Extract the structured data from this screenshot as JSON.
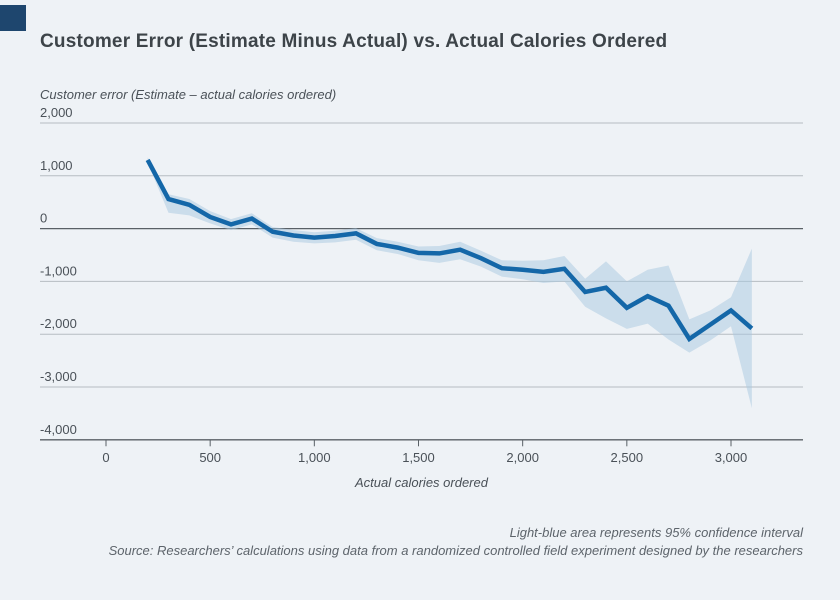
{
  "page": {
    "background": "#eef2f6",
    "accent_square_color": "#1e466e"
  },
  "title": "Customer Error (Estimate Minus Actual) vs. Actual Calories Ordered",
  "footer": {
    "note1": "Light-blue area represents 95% confidence interval",
    "note2": "Source: Researchers’ calculations using data from a randomized controlled field experiment designed by the researchers"
  },
  "chart_data": {
    "type": "line",
    "title": "Customer Error (Estimate Minus Actual) vs. Actual Calories Ordered",
    "ylabel": "Customer error (Estimate – actual calories ordered)",
    "xlabel": "Actual calories ordered",
    "x": [
      200,
      300,
      400,
      500,
      600,
      700,
      800,
      900,
      1000,
      1100,
      1200,
      1300,
      1400,
      1500,
      1600,
      1700,
      1800,
      1900,
      2000,
      2100,
      2200,
      2300,
      2400,
      2500,
      2600,
      2700,
      2800,
      2900,
      3000,
      3100
    ],
    "series": [
      {
        "name": "Customer error (estimate minus actual)",
        "values": [
          1300,
          560,
          450,
          220,
          80,
          190,
          -60,
          -130,
          -170,
          -140,
          -90,
          -290,
          -360,
          -460,
          -470,
          -400,
          -560,
          -750,
          -780,
          -820,
          -760,
          -1200,
          -1120,
          -1500,
          -1280,
          -1460,
          -2090,
          -1820,
          -1550,
          -1890
        ]
      },
      {
        "name": "95% CI upper bound",
        "values": [
          1350,
          650,
          560,
          330,
          180,
          290,
          30,
          -30,
          -70,
          -40,
          10,
          -180,
          -250,
          -340,
          -330,
          -250,
          -420,
          -600,
          -610,
          -600,
          -520,
          -950,
          -620,
          -1000,
          -780,
          -700,
          -1720,
          -1550,
          -1300,
          -380
        ]
      },
      {
        "name": "95% CI lower bound",
        "values": [
          1250,
          300,
          250,
          100,
          -30,
          80,
          -170,
          -250,
          -280,
          -260,
          -210,
          -410,
          -480,
          -600,
          -650,
          -580,
          -720,
          -910,
          -960,
          -1030,
          -1000,
          -1480,
          -1700,
          -1900,
          -1800,
          -2100,
          -2350,
          -2120,
          -1850,
          -3400
        ]
      }
    ],
    "y_ticks": [
      2000,
      1000,
      0,
      -1000,
      -2000,
      -3000,
      -4000
    ],
    "y_tick_labels": [
      "2,000",
      "1,000",
      "0",
      "-1,000",
      "-2,000",
      "-3,000",
      "-4,000"
    ],
    "x_ticks": [
      0,
      500,
      1000,
      1500,
      2000,
      2500,
      3000
    ],
    "x_tick_labels": [
      "0",
      "500",
      "1,000",
      "1,500",
      "2,000",
      "2,500",
      "3,000"
    ],
    "ylim": [
      -4000,
      2000
    ],
    "xlim": [
      -320,
      3350
    ],
    "grid": true,
    "legend_position": "none",
    "colors": {
      "line": "#1467a8",
      "band": "#a8c8e0",
      "grid": "#b6bcc2",
      "zero_axis": "#596066"
    }
  }
}
